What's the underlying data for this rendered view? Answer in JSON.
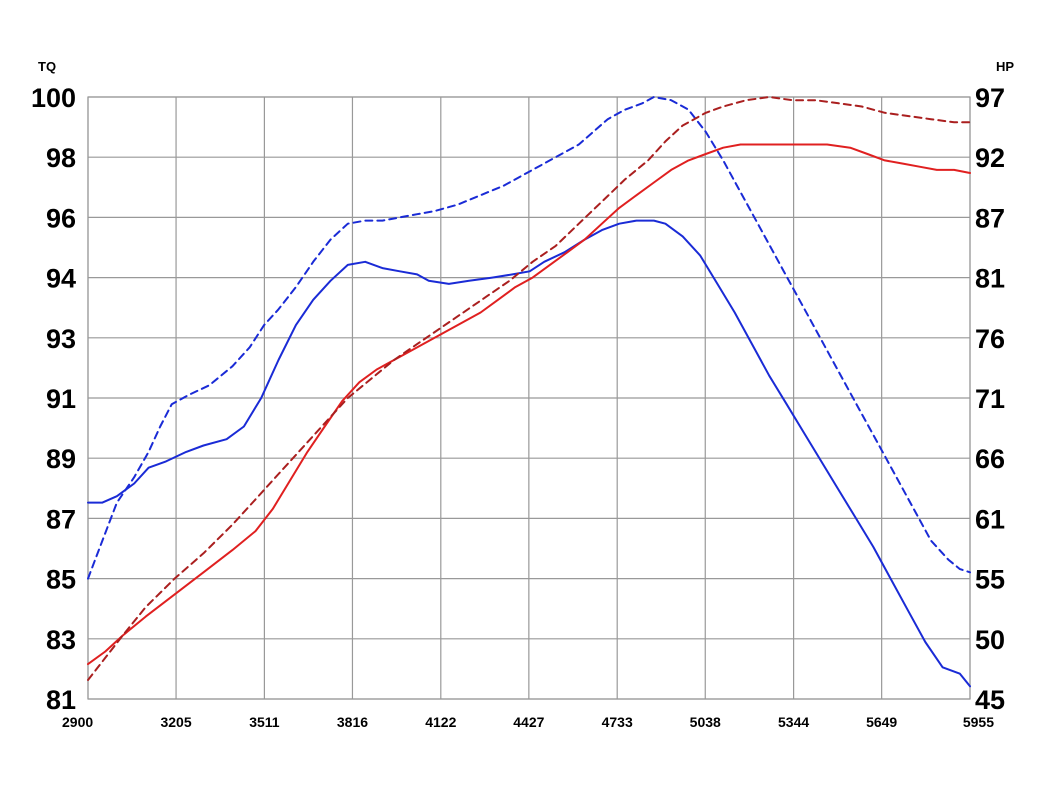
{
  "chart_data": {
    "type": "line",
    "left_axis_title": "TQ",
    "right_axis_title": "HP",
    "x_ticks": [
      "2900",
      "3205",
      "3511",
      "3816",
      "4122",
      "4427",
      "4733",
      "5038",
      "5344",
      "5649",
      "5955"
    ],
    "x_tick_values": [
      2900,
      3205,
      3511,
      3816,
      4122,
      4427,
      4733,
      5038,
      5344,
      5649,
      5955
    ],
    "xlim": [
      2900,
      5955
    ],
    "left_ticks": [
      "100",
      "98",
      "96",
      "94",
      "93",
      "91",
      "89",
      "87",
      "85",
      "83",
      "81"
    ],
    "right_ticks": [
      "97",
      "92",
      "87",
      "81",
      "76",
      "71",
      "66",
      "61",
      "55",
      "50",
      "45"
    ],
    "ylim_left": [
      81,
      100
    ],
    "ylim_right": [
      45,
      97
    ],
    "grid": true,
    "series": [
      {
        "axis": "left",
        "color": "#1a2bd6",
        "style": "solid",
        "points": [
          [
            2900,
            87.2
          ],
          [
            2950,
            87.2
          ],
          [
            3000,
            87.4
          ],
          [
            3060,
            87.8
          ],
          [
            3110,
            88.3
          ],
          [
            3170,
            88.5
          ],
          [
            3240,
            88.8
          ],
          [
            3300,
            89.0
          ],
          [
            3380,
            89.2
          ],
          [
            3440,
            89.6
          ],
          [
            3500,
            90.5
          ],
          [
            3560,
            91.7
          ],
          [
            3620,
            92.8
          ],
          [
            3680,
            93.6
          ],
          [
            3740,
            94.2
          ],
          [
            3800,
            94.7
          ],
          [
            3860,
            94.8
          ],
          [
            3920,
            94.6
          ],
          [
            3980,
            94.5
          ],
          [
            4040,
            94.4
          ],
          [
            4080,
            94.2
          ],
          [
            4150,
            94.1
          ],
          [
            4220,
            94.2
          ],
          [
            4300,
            94.3
          ],
          [
            4370,
            94.4
          ],
          [
            4430,
            94.5
          ],
          [
            4480,
            94.8
          ],
          [
            4550,
            95.1
          ],
          [
            4620,
            95.5
          ],
          [
            4680,
            95.8
          ],
          [
            4740,
            96.0
          ],
          [
            4800,
            96.1
          ],
          [
            4860,
            96.1
          ],
          [
            4900,
            96.0
          ],
          [
            4960,
            95.6
          ],
          [
            5020,
            95.0
          ],
          [
            5080,
            94.1
          ],
          [
            5140,
            93.2
          ],
          [
            5200,
            92.2
          ],
          [
            5260,
            91.2
          ],
          [
            5320,
            90.3
          ],
          [
            5380,
            89.4
          ],
          [
            5440,
            88.5
          ],
          [
            5500,
            87.6
          ],
          [
            5560,
            86.7
          ],
          [
            5620,
            85.8
          ],
          [
            5680,
            84.8
          ],
          [
            5740,
            83.8
          ],
          [
            5800,
            82.8
          ],
          [
            5860,
            82.0
          ],
          [
            5920,
            81.8
          ],
          [
            5955,
            81.4
          ]
        ]
      },
      {
        "axis": "left",
        "color": "#1a2bd6",
        "style": "dashed",
        "points": [
          [
            2900,
            84.8
          ],
          [
            2950,
            86.0
          ],
          [
            3000,
            87.2
          ],
          [
            3060,
            88.0
          ],
          [
            3110,
            88.8
          ],
          [
            3150,
            89.6
          ],
          [
            3190,
            90.3
          ],
          [
            3250,
            90.6
          ],
          [
            3320,
            90.9
          ],
          [
            3400,
            91.5
          ],
          [
            3460,
            92.1
          ],
          [
            3510,
            92.8
          ],
          [
            3560,
            93.3
          ],
          [
            3620,
            94.0
          ],
          [
            3680,
            94.8
          ],
          [
            3740,
            95.5
          ],
          [
            3800,
            96.0
          ],
          [
            3860,
            96.1
          ],
          [
            3920,
            96.1
          ],
          [
            3980,
            96.2
          ],
          [
            4040,
            96.3
          ],
          [
            4100,
            96.4
          ],
          [
            4180,
            96.6
          ],
          [
            4260,
            96.9
          ],
          [
            4340,
            97.2
          ],
          [
            4420,
            97.6
          ],
          [
            4480,
            97.9
          ],
          [
            4540,
            98.2
          ],
          [
            4600,
            98.5
          ],
          [
            4650,
            98.9
          ],
          [
            4700,
            99.3
          ],
          [
            4760,
            99.6
          ],
          [
            4820,
            99.8
          ],
          [
            4860,
            100.0
          ],
          [
            4920,
            99.9
          ],
          [
            4980,
            99.6
          ],
          [
            5040,
            98.9
          ],
          [
            5100,
            98.0
          ],
          [
            5160,
            97.0
          ],
          [
            5220,
            96.0
          ],
          [
            5280,
            95.0
          ],
          [
            5340,
            94.0
          ],
          [
            5400,
            93.0
          ],
          [
            5460,
            92.0
          ],
          [
            5520,
            91.0
          ],
          [
            5580,
            90.0
          ],
          [
            5640,
            89.0
          ],
          [
            5700,
            88.0
          ],
          [
            5760,
            87.0
          ],
          [
            5820,
            86.0
          ],
          [
            5880,
            85.4
          ],
          [
            5920,
            85.1
          ],
          [
            5955,
            85.0
          ]
        ]
      },
      {
        "axis": "left",
        "color": "#e02020",
        "style": "solid",
        "points": [
          [
            2900,
            82.1
          ],
          [
            2960,
            82.5
          ],
          [
            3020,
            83.0
          ],
          [
            3100,
            83.6
          ],
          [
            3200,
            84.3
          ],
          [
            3300,
            85.0
          ],
          [
            3400,
            85.7
          ],
          [
            3480,
            86.3
          ],
          [
            3540,
            87.0
          ],
          [
            3600,
            87.9
          ],
          [
            3660,
            88.8
          ],
          [
            3720,
            89.6
          ],
          [
            3780,
            90.4
          ],
          [
            3840,
            91.0
          ],
          [
            3900,
            91.4
          ],
          [
            3960,
            91.7
          ],
          [
            4020,
            92.0
          ],
          [
            4080,
            92.3
          ],
          [
            4140,
            92.6
          ],
          [
            4200,
            92.9
          ],
          [
            4260,
            93.2
          ],
          [
            4320,
            93.6
          ],
          [
            4380,
            94.0
          ],
          [
            4440,
            94.3
          ],
          [
            4500,
            94.7
          ],
          [
            4560,
            95.1
          ],
          [
            4620,
            95.5
          ],
          [
            4680,
            96.0
          ],
          [
            4740,
            96.5
          ],
          [
            4800,
            96.9
          ],
          [
            4860,
            97.3
          ],
          [
            4920,
            97.7
          ],
          [
            4980,
            98.0
          ],
          [
            5040,
            98.2
          ],
          [
            5100,
            98.4
          ],
          [
            5160,
            98.5
          ],
          [
            5220,
            98.5
          ],
          [
            5300,
            98.5
          ],
          [
            5380,
            98.5
          ],
          [
            5460,
            98.5
          ],
          [
            5540,
            98.4
          ],
          [
            5600,
            98.2
          ],
          [
            5660,
            98.0
          ],
          [
            5720,
            97.9
          ],
          [
            5780,
            97.8
          ],
          [
            5840,
            97.7
          ],
          [
            5900,
            97.7
          ],
          [
            5955,
            97.6
          ]
        ]
      },
      {
        "axis": "left",
        "color": "#aa1f1f",
        "style": "dashed",
        "points": [
          [
            2900,
            81.6
          ],
          [
            2960,
            82.3
          ],
          [
            3020,
            83.0
          ],
          [
            3100,
            83.9
          ],
          [
            3200,
            84.8
          ],
          [
            3300,
            85.6
          ],
          [
            3400,
            86.5
          ],
          [
            3480,
            87.3
          ],
          [
            3560,
            88.1
          ],
          [
            3640,
            88.9
          ],
          [
            3720,
            89.7
          ],
          [
            3800,
            90.5
          ],
          [
            3880,
            91.1
          ],
          [
            3960,
            91.7
          ],
          [
            4040,
            92.2
          ],
          [
            4120,
            92.7
          ],
          [
            4200,
            93.2
          ],
          [
            4280,
            93.7
          ],
          [
            4360,
            94.2
          ],
          [
            4440,
            94.8
          ],
          [
            4520,
            95.3
          ],
          [
            4600,
            96.0
          ],
          [
            4680,
            96.7
          ],
          [
            4760,
            97.4
          ],
          [
            4840,
            98.0
          ],
          [
            4900,
            98.6
          ],
          [
            4960,
            99.1
          ],
          [
            5040,
            99.5
          ],
          [
            5100,
            99.7
          ],
          [
            5180,
            99.9
          ],
          [
            5260,
            100.0
          ],
          [
            5340,
            99.9
          ],
          [
            5420,
            99.9
          ],
          [
            5500,
            99.8
          ],
          [
            5580,
            99.7
          ],
          [
            5660,
            99.5
          ],
          [
            5740,
            99.4
          ],
          [
            5820,
            99.3
          ],
          [
            5900,
            99.2
          ],
          [
            5955,
            99.2
          ]
        ]
      }
    ]
  }
}
